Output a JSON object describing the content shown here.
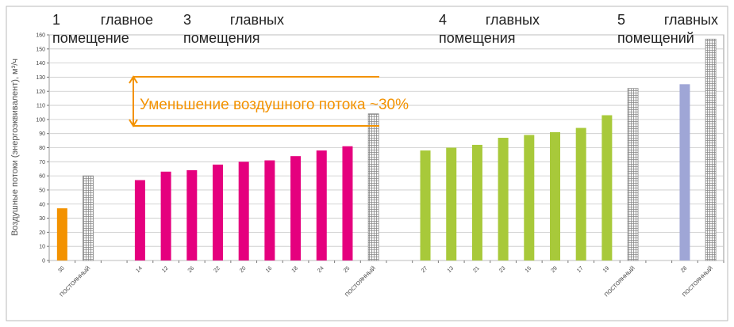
{
  "chart_data": {
    "type": "bar",
    "y_label": "Воздушные потоки (энергоэквивалент), м³/ч",
    "group_labels": [
      "1 главное помещение",
      "3 главных помещения",
      "4 главных помещения",
      "5 главных помещений"
    ],
    "annotation": "Уменьшение воздушного потока  ~30%",
    "annotation_color": "#f39200",
    "categories": [
      "30",
      "ПОСТОЯННЫЙ",
      null,
      "14",
      "12",
      "26",
      "22",
      "20",
      "16",
      "18",
      "24",
      "25",
      "ПОСТОЯННЫЙ",
      null,
      "27",
      "13",
      "21",
      "23",
      "15",
      "29",
      "17",
      "19",
      "ПОСТОЯННЫЙ",
      null,
      "28",
      "ПОСТОЯННЫЙ"
    ],
    "series": [
      {
        "color": "#f39200",
        "values": [
          37,
          null,
          null,
          null,
          null,
          null,
          null,
          null,
          null,
          null,
          null,
          null,
          null,
          null,
          null,
          null,
          null,
          null,
          null,
          null,
          null,
          null,
          null,
          null,
          null,
          null
        ]
      },
      {
        "color": "#e5007e",
        "values": [
          null,
          null,
          null,
          57,
          63,
          64,
          68,
          70,
          71,
          74,
          78,
          81,
          null,
          null,
          null,
          null,
          null,
          null,
          null,
          null,
          null,
          null,
          null,
          null,
          null,
          null
        ]
      },
      {
        "color": "#a8c93a",
        "values": [
          null,
          null,
          null,
          null,
          null,
          null,
          null,
          null,
          null,
          null,
          null,
          null,
          null,
          null,
          78,
          80,
          82,
          87,
          89,
          91,
          94,
          103,
          null,
          null,
          null,
          null
        ]
      },
      {
        "color": "#9fa6d6",
        "values": [
          null,
          null,
          null,
          null,
          null,
          null,
          null,
          null,
          null,
          null,
          null,
          null,
          null,
          null,
          null,
          null,
          null,
          null,
          null,
          null,
          null,
          null,
          null,
          null,
          125,
          null
        ]
      },
      {
        "color": "#888888",
        "hatched": true,
        "values": [
          null,
          60,
          null,
          null,
          null,
          null,
          null,
          null,
          null,
          null,
          null,
          null,
          104,
          null,
          null,
          null,
          null,
          null,
          null,
          null,
          null,
          null,
          122,
          null,
          null,
          157
        ]
      }
    ],
    "ylim": [
      0,
      160
    ],
    "yticks": [
      0,
      10,
      20,
      30,
      40,
      50,
      60,
      70,
      80,
      90,
      100,
      110,
      120,
      130,
      140,
      150,
      160
    ],
    "grid": true
  }
}
